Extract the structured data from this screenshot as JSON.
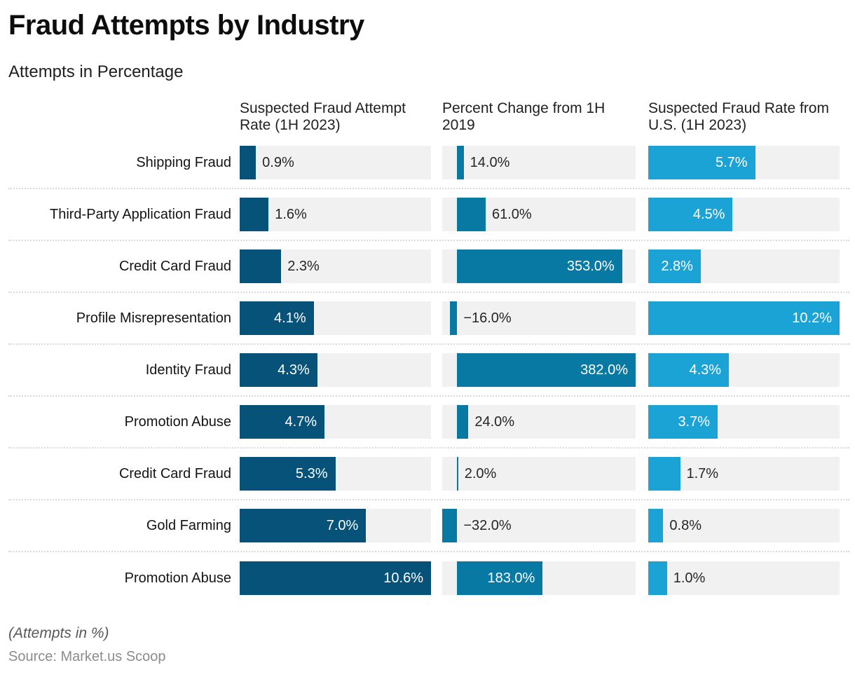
{
  "page": {
    "title": "Fraud Attempts by Industry",
    "subtitle": "Attempts in Percentage",
    "footnote": "(Attempts in %)",
    "source": "Source: Market.us Scoop"
  },
  "chart_data": {
    "type": "bar",
    "orientation": "horizontal",
    "grid": false,
    "legend": "none",
    "track_color": "#f1f1f1",
    "separator_color": "#d9d9d9",
    "categories": [
      "Shipping Fraud",
      "Third-Party Application Fraud",
      "Credit Card Fraud",
      "Profile Misrepresentation",
      "Identity Fraud",
      "Promotion Abuse",
      "Credit Card Fraud",
      "Gold Farming",
      "Promotion Abuse"
    ],
    "series": [
      {
        "name": "Suspected Fraud Attempt Rate (1H 2023)",
        "values": [
          0.9,
          1.6,
          2.3,
          4.1,
          4.3,
          4.7,
          5.3,
          7.0,
          10.6
        ]
      },
      {
        "name": "Percent Change from 1H 2019",
        "values": [
          14.0,
          61.0,
          353.0,
          -16.0,
          382.0,
          24.0,
          2.0,
          -32.0,
          183.0
        ]
      },
      {
        "name": "Suspected Fraud Rate from U.S. (1H 2023)",
        "values": [
          5.7,
          4.5,
          2.8,
          10.2,
          4.3,
          3.7,
          1.7,
          0.8,
          1.0
        ]
      }
    ],
    "columns": [
      {
        "header": "Suspected Fraud Attempt Rate (1H 2023)",
        "color": "#075279",
        "axis": {
          "min": 0,
          "max": 10.6
        }
      },
      {
        "header": "Percent Change from 1H 2019",
        "color": "#0879a3",
        "axis": {
          "min": -32,
          "max": 382
        }
      },
      {
        "header": "Suspected Fraud Rate from U.S. (1H 2023)",
        "color": "#1aa3d4",
        "axis": {
          "min": 0,
          "max": 10.2
        }
      }
    ],
    "rows": [
      {
        "label": "Shipping Fraud",
        "cells": [
          {
            "value": 0.9,
            "label": "0.9%",
            "label_position": "outside"
          },
          {
            "value": 14.0,
            "label": "14.0%",
            "label_position": "outside"
          },
          {
            "value": 5.7,
            "label": "5.7%",
            "label_position": "inside"
          }
        ]
      },
      {
        "label": "Third-Party Application Fraud",
        "cells": [
          {
            "value": 1.6,
            "label": "1.6%",
            "label_position": "outside"
          },
          {
            "value": 61.0,
            "label": "61.0%",
            "label_position": "outside"
          },
          {
            "value": 4.5,
            "label": "4.5%",
            "label_position": "inside"
          }
        ]
      },
      {
        "label": "Credit Card Fraud",
        "cells": [
          {
            "value": 2.3,
            "label": "2.3%",
            "label_position": "outside"
          },
          {
            "value": 353.0,
            "label": "353.0%",
            "label_position": "inside"
          },
          {
            "value": 2.8,
            "label": "2.8%",
            "label_position": "inside"
          }
        ]
      },
      {
        "label": "Profile Misrepresentation",
        "cells": [
          {
            "value": 4.1,
            "label": "4.1%",
            "label_position": "inside"
          },
          {
            "value": -16.0,
            "label": "−16.0%",
            "label_position": "outside"
          },
          {
            "value": 10.2,
            "label": "10.2%",
            "label_position": "inside"
          }
        ]
      },
      {
        "label": "Identity Fraud",
        "cells": [
          {
            "value": 4.3,
            "label": "4.3%",
            "label_position": "inside"
          },
          {
            "value": 382.0,
            "label": "382.0%",
            "label_position": "inside"
          },
          {
            "value": 4.3,
            "label": "4.3%",
            "label_position": "inside"
          }
        ]
      },
      {
        "label": "Promotion Abuse",
        "cells": [
          {
            "value": 4.7,
            "label": "4.7%",
            "label_position": "inside"
          },
          {
            "value": 24.0,
            "label": "24.0%",
            "label_position": "outside"
          },
          {
            "value": 3.7,
            "label": "3.7%",
            "label_position": "inside"
          }
        ]
      },
      {
        "label": "Credit Card Fraud",
        "cells": [
          {
            "value": 5.3,
            "label": "5.3%",
            "label_position": "inside"
          },
          {
            "value": 2.0,
            "label": "2.0%",
            "label_position": "outside"
          },
          {
            "value": 1.7,
            "label": "1.7%",
            "label_position": "outside"
          }
        ]
      },
      {
        "label": "Gold Farming",
        "cells": [
          {
            "value": 7.0,
            "label": "7.0%",
            "label_position": "inside"
          },
          {
            "value": -32.0,
            "label": "−32.0%",
            "label_position": "outside"
          },
          {
            "value": 0.8,
            "label": "0.8%",
            "label_position": "outside"
          }
        ]
      },
      {
        "label": "Promotion Abuse",
        "cells": [
          {
            "value": 10.6,
            "label": "10.6%",
            "label_position": "inside"
          },
          {
            "value": 183.0,
            "label": "183.0%",
            "label_position": "inside"
          },
          {
            "value": 1.0,
            "label": "1.0%",
            "label_position": "outside"
          }
        ]
      }
    ]
  }
}
